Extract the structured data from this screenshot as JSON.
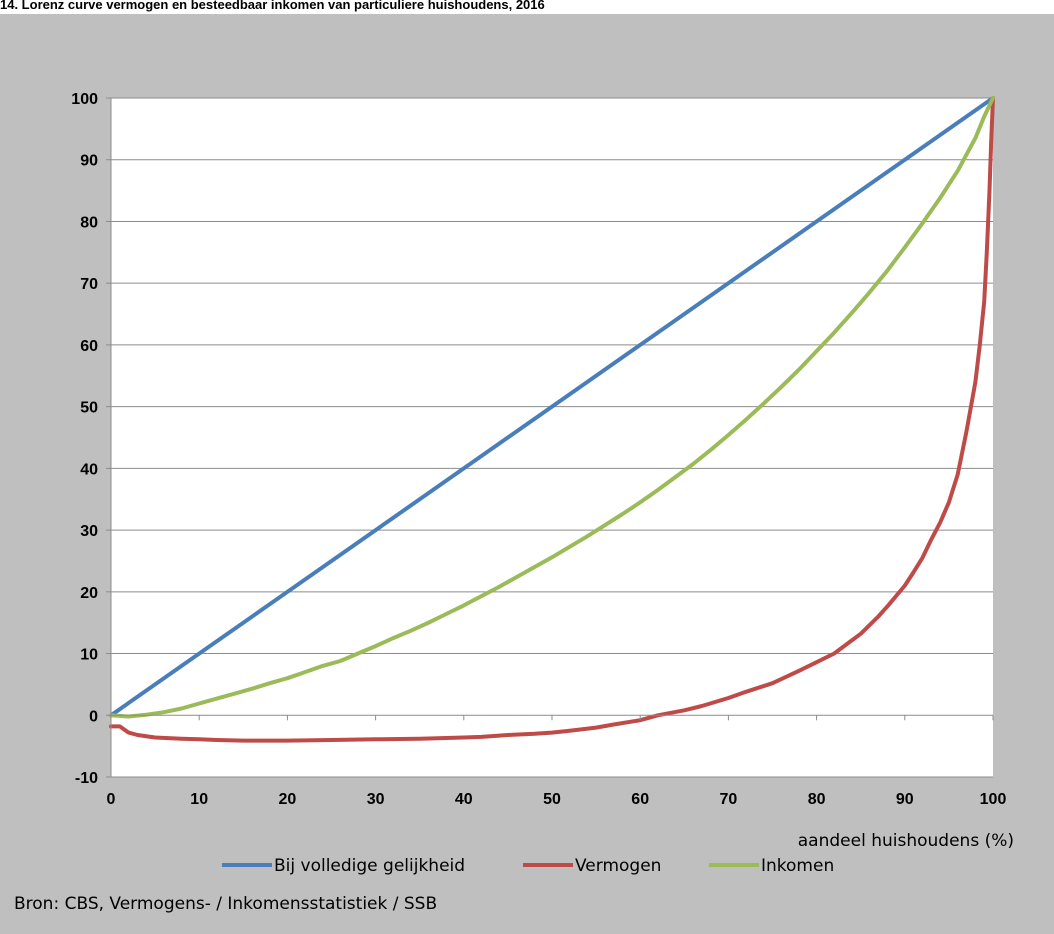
{
  "title": "14. Lorenz curve vermogen  en besteedbaar inkomen van particuliere huishoudens, 2016",
  "source": "Bron: CBS, Vermogens- / Inkomensstatistiek / SSB",
  "chart_data": {
    "type": "line",
    "xlabel": "aandeel huishoudens (%)",
    "ylabel": "",
    "xlim": [
      0,
      100
    ],
    "ylim": [
      -10,
      100
    ],
    "xticks": [
      0,
      10,
      20,
      30,
      40,
      50,
      60,
      70,
      80,
      90,
      100
    ],
    "yticks": [
      -10,
      0,
      10,
      20,
      30,
      40,
      50,
      60,
      70,
      80,
      90,
      100
    ],
    "grid": "horizontal",
    "legend_position": "bottom",
    "series": [
      {
        "name": "Bij volledige gelijkheid",
        "color": "#4a7ebb",
        "x": [
          0,
          100
        ],
        "y": [
          0,
          100
        ]
      },
      {
        "name": "Vermogen",
        "color": "#be4b48",
        "x": [
          0,
          1,
          2,
          3,
          5,
          8,
          10,
          12,
          15,
          20,
          25,
          30,
          35,
          40,
          42,
          45,
          48,
          50,
          52,
          55,
          57,
          60,
          62,
          65,
          67,
          70,
          72,
          75,
          78,
          80,
          82,
          85,
          87,
          88,
          90,
          91,
          92,
          93,
          94,
          95,
          96,
          97,
          98,
          98.5,
          99,
          99.3,
          99.6,
          99.8,
          100
        ],
        "y": [
          -1.8,
          -1.8,
          -2.8,
          -3.2,
          -3.6,
          -3.8,
          -3.9,
          -4.0,
          -4.1,
          -4.1,
          -4.0,
          -3.9,
          -3.8,
          -3.6,
          -3.5,
          -3.2,
          -3.0,
          -2.8,
          -2.5,
          -2.0,
          -1.5,
          -0.8,
          0,
          0.8,
          1.5,
          2.8,
          3.8,
          5.2,
          7.2,
          8.6,
          10.0,
          13.2,
          16.0,
          17.6,
          21.0,
          23.2,
          25.5,
          28.5,
          31.2,
          34.5,
          39,
          46,
          54,
          60,
          67,
          75,
          85,
          93,
          100
        ]
      },
      {
        "name": "Inkomen",
        "color": "#9bbb59",
        "x": [
          0,
          2,
          4,
          6,
          8,
          10,
          12,
          14,
          16,
          18,
          20,
          22,
          24,
          26,
          28,
          30,
          32,
          34,
          36,
          38,
          40,
          42,
          44,
          46,
          48,
          50,
          52,
          54,
          56,
          58,
          60,
          62,
          64,
          66,
          68,
          70,
          72,
          74,
          76,
          78,
          80,
          82,
          84,
          86,
          88,
          90,
          92,
          94,
          96,
          98,
          99,
          100
        ],
        "y": [
          0,
          -0.2,
          0.1,
          0.5,
          1.1,
          1.9,
          2.7,
          3.5,
          4.3,
          5.2,
          6.0,
          7.0,
          8.0,
          8.8,
          10.0,
          11.2,
          12.5,
          13.7,
          15.0,
          16.4,
          17.8,
          19.3,
          20.8,
          22.4,
          24.0,
          25.6,
          27.3,
          29.0,
          30.8,
          32.6,
          34.5,
          36.5,
          38.6,
          40.7,
          43.0,
          45.4,
          47.9,
          50.5,
          53.2,
          56.0,
          59.0,
          62.0,
          65.2,
          68.5,
          72.0,
          75.8,
          79.7,
          83.8,
          88.2,
          93.5,
          97,
          100
        ]
      }
    ]
  }
}
